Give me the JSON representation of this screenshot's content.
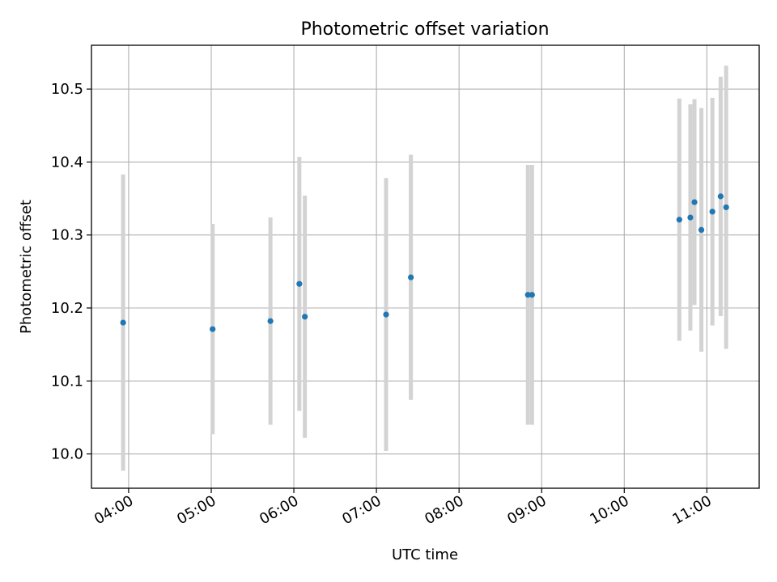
{
  "chart_data": {
    "type": "scatter",
    "title": "Photometric offset variation",
    "xlabel": "UTC time",
    "ylabel": "Photometric offset",
    "x_ticks": [
      "04:00",
      "05:00",
      "06:00",
      "07:00",
      "08:00",
      "09:00",
      "10:00",
      "11:00"
    ],
    "xlim": [
      "03:33",
      "11:38"
    ],
    "y_ticks": [
      "10.0",
      "10.1",
      "10.2",
      "10.3",
      "10.4",
      "10.5"
    ],
    "ylim": [
      9.953,
      10.56
    ],
    "grid": true,
    "point_color": "#1f77b4",
    "errorbar_color": "#d3d3d3",
    "points": [
      {
        "x": "03:56",
        "y": 10.18,
        "err": 0.203
      },
      {
        "x": "05:01",
        "y": 10.171,
        "err": 0.144
      },
      {
        "x": "05:43",
        "y": 10.182,
        "err": 0.142
      },
      {
        "x": "06:04",
        "y": 10.233,
        "err": 0.174
      },
      {
        "x": "06:08",
        "y": 10.188,
        "err": 0.166
      },
      {
        "x": "07:07",
        "y": 10.191,
        "err": 0.187
      },
      {
        "x": "07:25",
        "y": 10.242,
        "err": 0.168
      },
      {
        "x": "08:50",
        "y": 10.218,
        "err": 0.178
      },
      {
        "x": "08:53",
        "y": 10.218,
        "err": 0.178
      },
      {
        "x": "10:40",
        "y": 10.321,
        "err": 0.166
      },
      {
        "x": "10:48",
        "y": 10.324,
        "err": 0.155
      },
      {
        "x": "10:51",
        "y": 10.345,
        "err": 0.141
      },
      {
        "x": "10:56",
        "y": 10.307,
        "err": 0.167
      },
      {
        "x": "11:04",
        "y": 10.332,
        "err": 0.156
      },
      {
        "x": "11:10",
        "y": 10.353,
        "err": 0.164
      },
      {
        "x": "11:14",
        "y": 10.338,
        "err": 0.194
      }
    ]
  }
}
